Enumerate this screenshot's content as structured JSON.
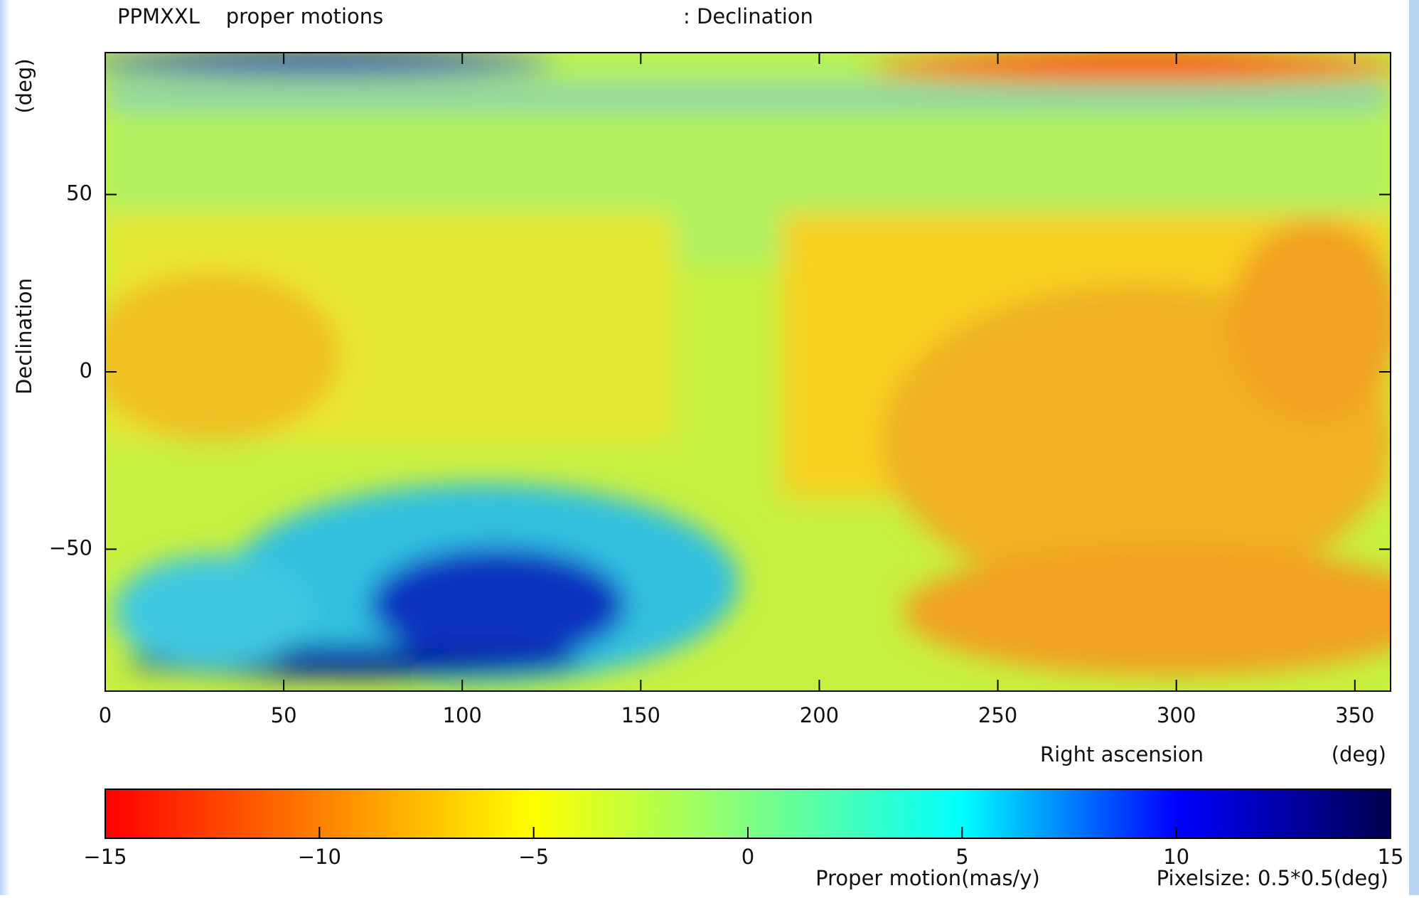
{
  "chart_data": {
    "type": "heatmap",
    "title": "PPMXXL    proper motions",
    "subtitle": ": Declination",
    "x_label": "Right ascension",
    "x_unit": "(deg)",
    "y_label": "Declination",
    "y_unit": "(deg)",
    "xlim": [
      0,
      360
    ],
    "xticks": [
      0,
      50,
      100,
      150,
      200,
      250,
      300,
      350
    ],
    "ylim": [
      -90,
      90
    ],
    "yticks": [
      {
        "value": -50,
        "label": "−50"
      },
      0,
      50
    ],
    "colorbar": {
      "label": "Proper motion(mas/y)",
      "note": "Pixelsize: 0.5*0.5(deg)",
      "lim": [
        -15,
        15
      ],
      "ticks": [
        {
          "value": -15,
          "label": "−15"
        },
        {
          "value": -10,
          "label": "−10"
        },
        {
          "value": -5,
          "label": "−5"
        },
        0,
        5,
        10,
        15
      ],
      "colors": [
        "#ff0000",
        "#ff8000",
        "#ffff00",
        "#80ff80",
        "#00ffff",
        "#0000ff",
        "#000050"
      ]
    }
  }
}
